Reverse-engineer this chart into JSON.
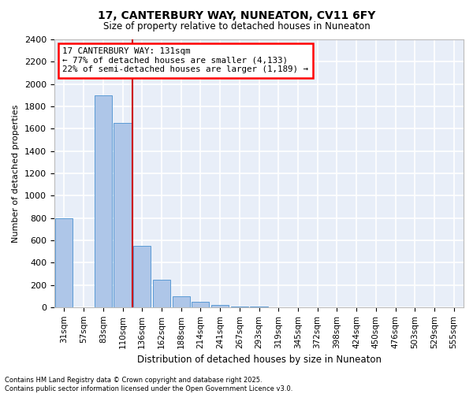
{
  "title": "17, CANTERBURY WAY, NUNEATON, CV11 6FY",
  "subtitle": "Size of property relative to detached houses in Nuneaton",
  "xlabel": "Distribution of detached houses by size in Nuneaton",
  "ylabel": "Number of detached properties",
  "categories": [
    "31sqm",
    "57sqm",
    "83sqm",
    "110sqm",
    "136sqm",
    "162sqm",
    "188sqm",
    "214sqm",
    "241sqm",
    "267sqm",
    "293sqm",
    "319sqm",
    "345sqm",
    "372sqm",
    "398sqm",
    "424sqm",
    "450sqm",
    "476sqm",
    "503sqm",
    "529sqm",
    "555sqm"
  ],
  "values": [
    800,
    0,
    1900,
    1650,
    550,
    250,
    100,
    50,
    20,
    10,
    5,
    3,
    2,
    1,
    1,
    0,
    0,
    0,
    0,
    0,
    0
  ],
  "bar_color": "#aec6e8",
  "bar_edge_color": "#5b9bd5",
  "vline_x_index": 3.5,
  "annotation_title": "17 CANTERBURY WAY: 131sqm",
  "annotation_line1": "← 77% of detached houses are smaller (4,133)",
  "annotation_line2": "22% of semi-detached houses are larger (1,189) →",
  "vline_color": "#cc0000",
  "ylim": [
    0,
    2400
  ],
  "yticks": [
    0,
    200,
    400,
    600,
    800,
    1000,
    1200,
    1400,
    1600,
    1800,
    2000,
    2200,
    2400
  ],
  "background_color": "#e8eef8",
  "grid_color": "#ffffff",
  "footer_line1": "Contains HM Land Registry data © Crown copyright and database right 2025.",
  "footer_line2": "Contains public sector information licensed under the Open Government Licence v3.0."
}
